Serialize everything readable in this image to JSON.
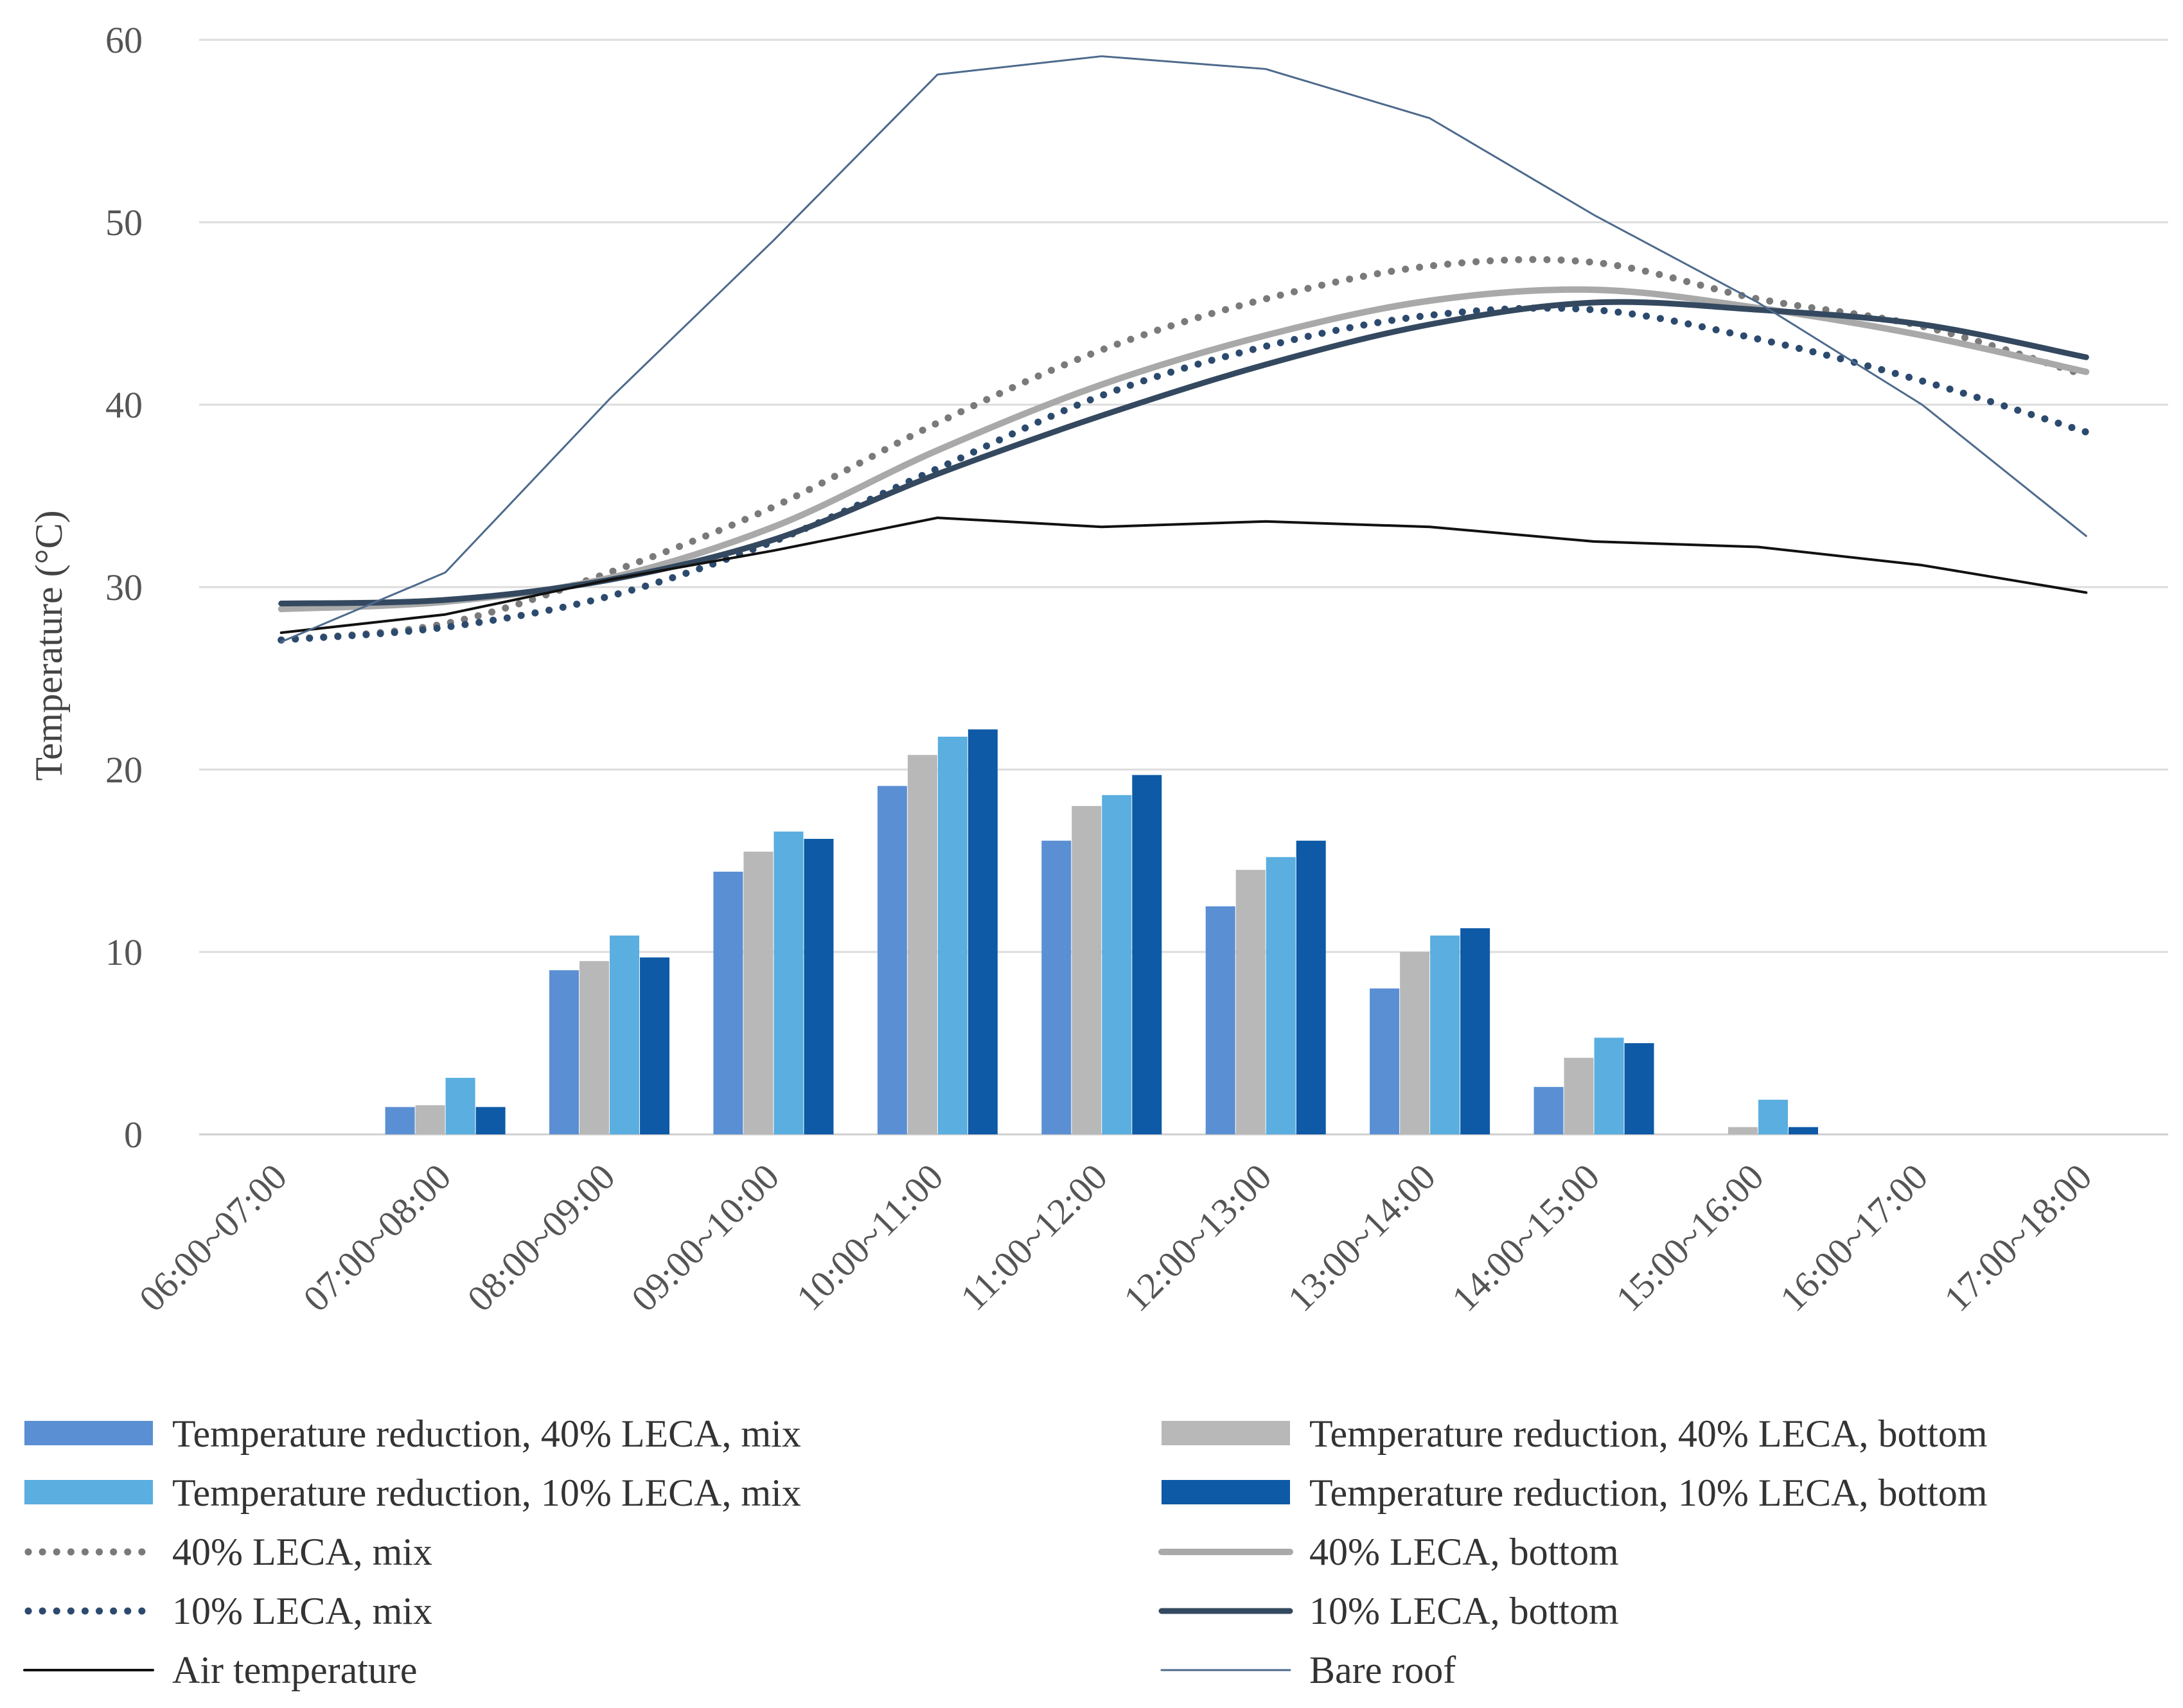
{
  "chart_data": {
    "type": "bar",
    "ylabel": "Temperature  (°C)",
    "ylim": [
      0,
      60
    ],
    "yticks": [
      0,
      10,
      20,
      30,
      40,
      50,
      60
    ],
    "grid": true,
    "legend_position": "bottom",
    "categories": [
      "06:00~07:00",
      "07:00~08:00",
      "08:00~09:00",
      "09:00~10:00",
      "10:00~11:00",
      "11:00~12:00",
      "12:00~13:00",
      "13:00~14:00",
      "14:00~15:00",
      "15:00~16:00",
      "16:00~17:00",
      "17:00~18:00"
    ],
    "bar_series": [
      {
        "name": "Temperature reduction, 40% LECA, mix",
        "color": "#5b8fd4",
        "values": [
          0,
          1.5,
          9.0,
          14.4,
          19.1,
          16.1,
          12.5,
          8.0,
          2.6,
          0,
          0,
          0
        ]
      },
      {
        "name": "Temperature reduction,  40% LECA, bottom",
        "color": "#b8b8b8",
        "values": [
          0,
          1.6,
          9.5,
          15.5,
          20.8,
          18.0,
          14.5,
          10.0,
          4.2,
          0.4,
          0,
          0
        ]
      },
      {
        "name": "Temperature reduction,  10% LECA, mix",
        "color": "#5aaee0",
        "values": [
          0,
          3.1,
          10.9,
          16.6,
          21.8,
          18.6,
          15.2,
          10.9,
          5.3,
          1.9,
          0,
          0
        ]
      },
      {
        "name": "Temperature reduction,  10% LECA, bottom",
        "color": "#0e5aa6",
        "values": [
          0,
          1.5,
          9.7,
          16.2,
          22.2,
          19.7,
          16.1,
          11.3,
          5.0,
          0.4,
          0,
          0
        ]
      }
    ],
    "line_series": [
      {
        "name": "40% LECA, mix",
        "color": "#7a7a7a",
        "style": "dotted",
        "width": 11,
        "values": [
          27.1,
          28.0,
          30.8,
          34.4,
          39.0,
          43.0,
          45.8,
          47.6,
          47.8,
          45.8,
          44.3,
          41.6
        ]
      },
      {
        "name": "40% LECA, bottom",
        "color": "#a9a9a9",
        "style": "solid",
        "width": 10,
        "values": [
          28.8,
          29.2,
          30.5,
          33.3,
          37.5,
          41.1,
          43.8,
          45.7,
          46.3,
          45.3,
          43.8,
          41.8
        ]
      },
      {
        "name": "10% LECA, mix",
        "color": "#2c4a6e",
        "style": "dotted",
        "width": 11,
        "values": [
          27.1,
          27.8,
          29.5,
          32.5,
          36.5,
          40.5,
          43.2,
          44.9,
          45.2,
          43.6,
          41.3,
          38.5
        ]
      },
      {
        "name": "10% LECA, bottom",
        "color": "#34495f",
        "style": "solid",
        "width": 9,
        "values": [
          29.1,
          29.3,
          30.4,
          32.6,
          36.2,
          39.4,
          42.2,
          44.4,
          45.6,
          45.2,
          44.4,
          42.6
        ]
      },
      {
        "name": "Air temperature",
        "color": "#111111",
        "style": "solid",
        "width": 4,
        "values": [
          27.5,
          28.5,
          30.4,
          32.0,
          33.8,
          33.3,
          33.6,
          33.3,
          32.5,
          32.2,
          31.2,
          29.7
        ]
      },
      {
        "name": "Bare roof",
        "color": "#4d6a8c",
        "style": "solid",
        "width": 3,
        "values": [
          27.0,
          30.8,
          40.3,
          49.0,
          58.1,
          59.1,
          58.4,
          55.7,
          50.4,
          45.6,
          40.0,
          32.8
        ]
      }
    ]
  }
}
